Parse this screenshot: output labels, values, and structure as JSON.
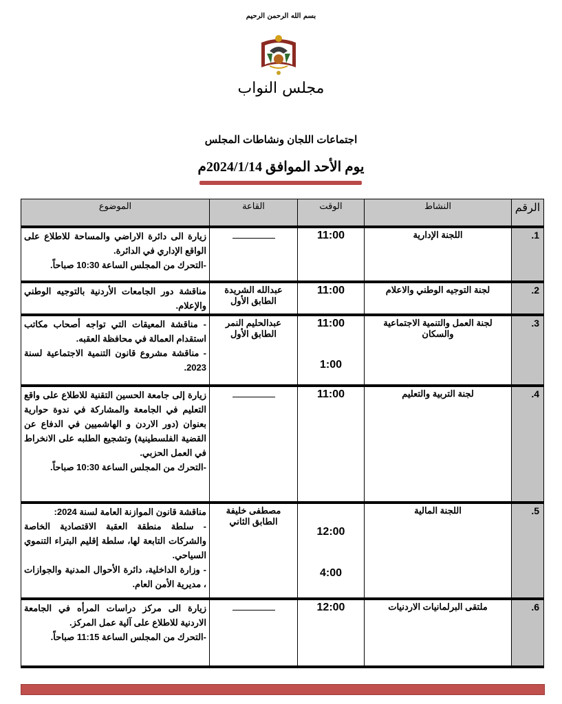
{
  "header": {
    "basmala": "بسم الله الرحمن الرحيم",
    "logo_text": "مجلس النواب",
    "title": "اجتماعات اللجان ونشاطات المجلس",
    "date": "يوم الأحد الموافق 2024/1/14م"
  },
  "colors": {
    "accent": "#c0504d",
    "header_bg": "#c8c8c8"
  },
  "table": {
    "headers": {
      "num": "الرقم",
      "activity": "النشاط",
      "time": "الوقت",
      "hall": "القاعة",
      "subject": "الموضوع"
    },
    "rows": [
      {
        "num": "1.",
        "activity": "اللجنة الإدارية",
        "times": [
          "11:00"
        ],
        "hall": [],
        "subject": [
          "زيارة الى دائرة الاراضي والمساحة للاطلاع على الواقع الإداري في الدائرة.",
          "-التحرك من المجلس الساعة 10:30 صباحاً."
        ]
      },
      {
        "num": "2.",
        "activity": "لجنة التوجيه الوطني والاعلام",
        "times": [
          "11:00"
        ],
        "hall": [
          "عبدالله الشريدة",
          "الطابق الأول"
        ],
        "subject": [
          "مناقشة دور الجامعات الأردنية بالتوجيه الوطني والإعلام."
        ]
      },
      {
        "num": "3.",
        "activity": "لجنة العمل والتنمية الاجتماعية والسكان",
        "times": [
          "11:00",
          "1:00"
        ],
        "hall": [
          "عبدالحليم النمر",
          "الطابق الأول"
        ],
        "subject": [
          "- مناقشة المعيقات التي تواجه أصحاب مكاتب استقدام العمالة في محافظة العقبه.",
          "- مناقشة مشروع قانون التنمية الاجتماعية لسنة 2023."
        ]
      },
      {
        "num": "4.",
        "activity": "لجنة التربية والتعليم",
        "times": [
          "11:00"
        ],
        "hall": [],
        "subject": [
          "زيارة إلى جامعة الحسين التقنية للاطلاع على واقع التعليم في الجامعة والمشاركة في ندوة حوارية بعنوان (دور الاردن و الهاشميين في الدفاع عن القضية الفلسطينية) وتشجيع الطلبه على الانخراط في العمل الحزبي.",
          "-التحرك من المجلس الساعة 10:30 صباحاً."
        ]
      },
      {
        "num": "5.",
        "activity": "اللجنة المالية",
        "times": [
          "12:00",
          "4:00"
        ],
        "hall": [
          "مصطفى خليفة",
          "الطابق الثاني"
        ],
        "subject": [
          "مناقشة قانون الموازنة العامة لسنة 2024:",
          "- سلطة منطقة العقبة الاقتصادية الخاصة والشركات التابعة لها، سلطة إقليم البتراء التنموي السياحي.",
          "- وزارة الداخلية، دائرة الأحوال المدنية والجوازات ، مديرية الأمن العام."
        ]
      },
      {
        "num": "6.",
        "activity": "ملتقى البرلمانيات الاردنيات",
        "times": [
          "12:00"
        ],
        "hall": [],
        "subject": [
          "زيارة الى مركز دراسات المرأه في الجامعة الاردنية للاطلاع على آلية عمل المركز.",
          "-التحرك من المجلس الساعة 11:15 صباحاً."
        ]
      }
    ]
  }
}
